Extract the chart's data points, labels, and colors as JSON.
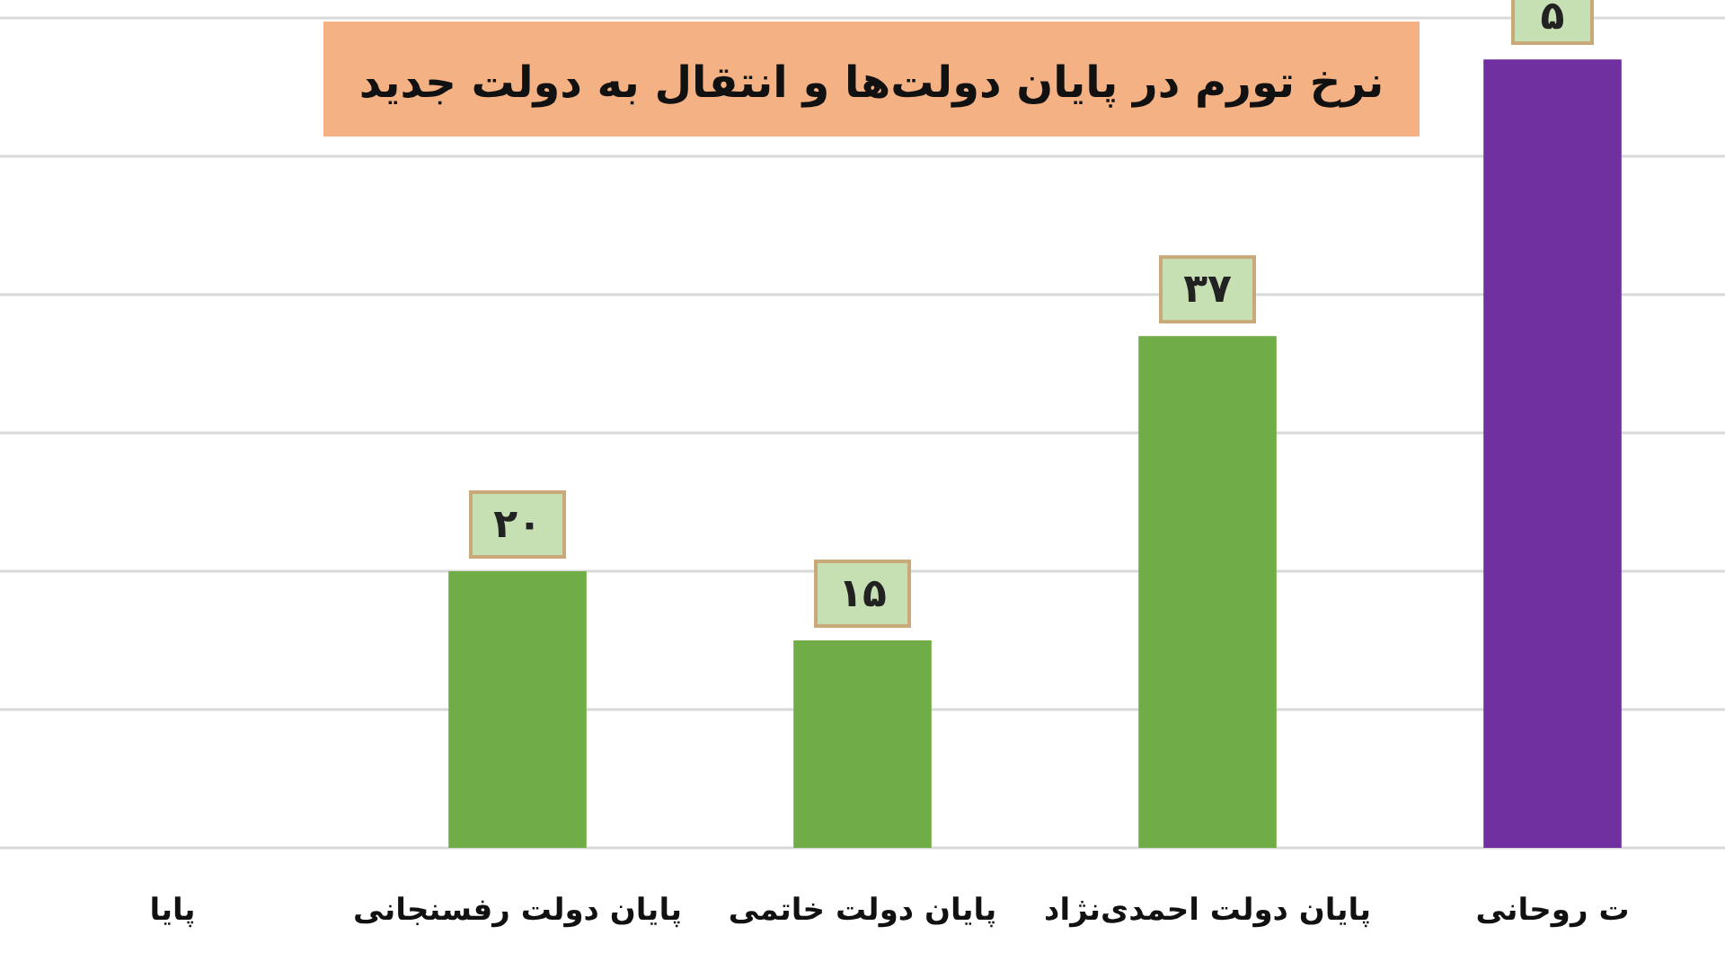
{
  "chart_data": {
    "type": "bar",
    "title": "نرخ تورم در پایان دولت‌ها و انتقال به دولت جدید",
    "categories": [
      "پایا",
      "پایان دولت رفسنجانی",
      "پایان دولت خاتمی",
      "پایان دولت احمدی‌نژاد",
      "ت روحانی"
    ],
    "values": [
      null,
      20,
      15,
      37,
      57
    ],
    "colors": [
      null,
      "#70ad47",
      "#70ad47",
      "#70ad47",
      "#7030a0"
    ],
    "value_labels": [
      null,
      "۲۰",
      "۱۵",
      "۳۷",
      null
    ],
    "annotations": [
      "۵"
    ],
    "ylim": [
      0,
      60
    ],
    "yticks": [
      {
        "value": 0,
        "label": null
      },
      {
        "value": 10,
        "label": null
      },
      {
        "value": 20,
        "label": null
      },
      {
        "value": 30,
        "label": null
      },
      {
        "value": 40,
        "label": null
      },
      {
        "value": 50,
        "label": null
      },
      {
        "value": 60,
        "label": null
      }
    ],
    "tick_labels": "x",
    "grid": "y"
  }
}
